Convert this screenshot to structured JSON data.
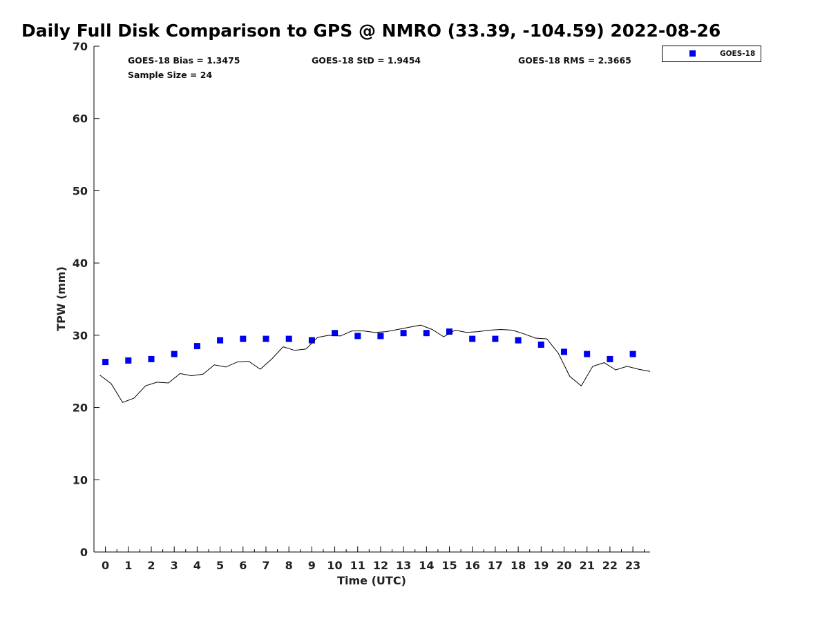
{
  "chart_data": {
    "type": "scatter",
    "title": "Daily Full Disk Comparison to GPS @ NMRO (33.39, -104.59) 2022-08-26",
    "xlabel": "Time (UTC)",
    "ylabel": "TPW (mm)",
    "xlim": [
      -0.5,
      23.75
    ],
    "ylim": [
      0,
      70
    ],
    "x_ticks": [
      "0",
      "1",
      "2",
      "3",
      "4",
      "5",
      "6",
      "7",
      "8",
      "9",
      "10",
      "11",
      "12",
      "13",
      "14",
      "15",
      "16",
      "17",
      "18",
      "19",
      "20",
      "21",
      "22",
      "23"
    ],
    "y_ticks": [
      "0",
      "10",
      "20",
      "30",
      "40",
      "50",
      "60",
      "70"
    ],
    "grid": false,
    "legend_position": "top-right, outside plot",
    "stats": {
      "bias": "GOES-18 Bias = 1.3475",
      "std": "GOES-18 StD = 1.9454",
      "rms": "GOES-18 RMS = 2.3665",
      "sample": "Sample Size = 24"
    },
    "series": [
      {
        "name": "GOES-18",
        "kind": "scatter",
        "marker": "square",
        "color": "#0000ee",
        "x": [
          0,
          1,
          2,
          3,
          4,
          5,
          6,
          7,
          8,
          9,
          10,
          11,
          12,
          13,
          14,
          15,
          16,
          17,
          18,
          19,
          20,
          21,
          22,
          23
        ],
        "y": [
          26.3,
          26.5,
          26.7,
          27.4,
          28.5,
          29.3,
          29.5,
          29.5,
          29.5,
          29.3,
          30.3,
          29.9,
          29.9,
          30.3,
          30.3,
          30.5,
          29.5,
          29.5,
          29.3,
          28.7,
          27.7,
          27.4,
          26.7,
          27.4
        ]
      },
      {
        "kind": "line",
        "color": "#000000",
        "x": [
          -0.25,
          0.25,
          0.75,
          1.25,
          1.75,
          2.25,
          2.75,
          3.25,
          3.75,
          4.25,
          4.75,
          5.25,
          5.75,
          6.25,
          6.75,
          7.25,
          7.75,
          8.25,
          8.75,
          9.25,
          9.75,
          10.25,
          10.75,
          11.25,
          11.75,
          12.25,
          12.75,
          13.25,
          13.75,
          14.25,
          14.75,
          15.25,
          15.75,
          16.25,
          16.75,
          17.25,
          17.75,
          18.25,
          18.75,
          19.25,
          19.75,
          20.25,
          20.75,
          21.25,
          21.75,
          22.25,
          22.75,
          23.25,
          23.75
        ],
        "y": [
          24.5,
          23.3,
          20.7,
          21.3,
          23.0,
          23.5,
          23.4,
          24.7,
          24.4,
          24.6,
          25.9,
          25.6,
          26.3,
          26.4,
          25.3,
          26.7,
          28.4,
          27.9,
          28.1,
          29.7,
          30.0,
          29.9,
          30.6,
          30.6,
          30.4,
          30.5,
          30.8,
          31.1,
          31.4,
          30.8,
          29.8,
          30.7,
          30.4,
          30.5,
          30.7,
          30.8,
          30.7,
          30.2,
          29.6,
          29.5,
          27.5,
          24.3,
          23.0,
          25.7,
          26.2,
          25.2,
          25.7,
          25.3,
          25.0
        ]
      }
    ]
  }
}
